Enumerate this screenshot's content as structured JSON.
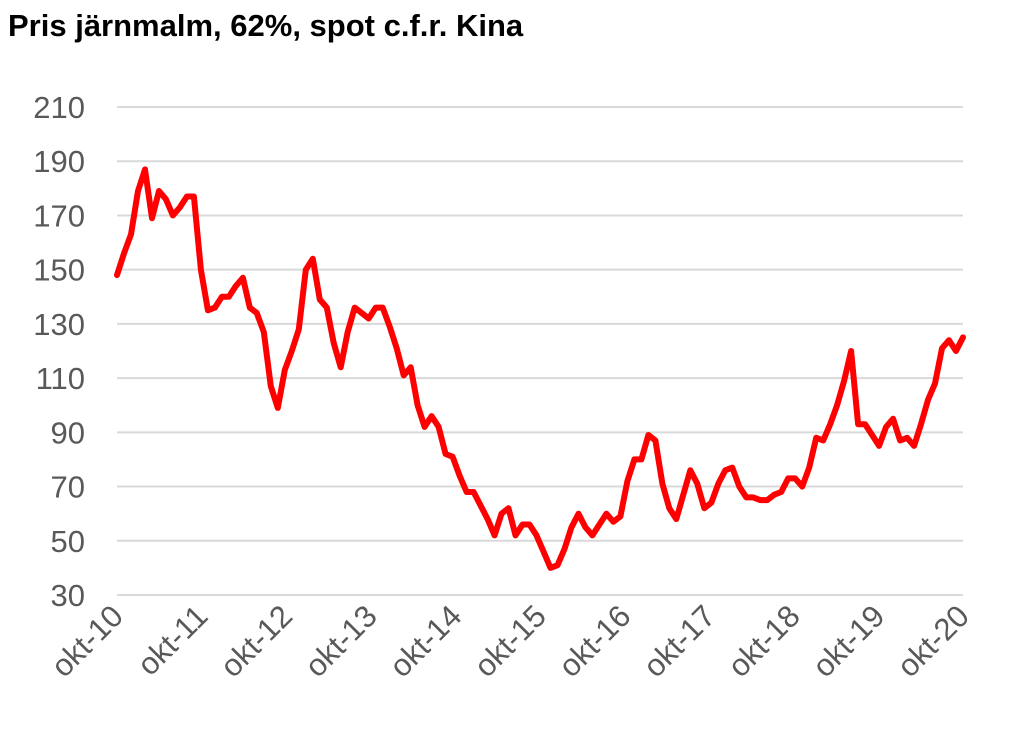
{
  "chart_data": {
    "type": "line",
    "title": "Pris järnmalm, 62%, spot c.f.r. Kina",
    "xlabel": "",
    "ylabel": "",
    "ylim": [
      30,
      210
    ],
    "yticks": [
      30,
      50,
      70,
      90,
      110,
      130,
      150,
      170,
      190,
      210
    ],
    "xtick_labels": [
      "okt-10",
      "okt-11",
      "okt-12",
      "okt-13",
      "okt-14",
      "okt-15",
      "okt-16",
      "okt-17",
      "okt-18",
      "okt-19",
      "okt-20"
    ],
    "grid": true,
    "line_color": "#ff0000",
    "grid_color": "#d9d9d9",
    "series": [
      {
        "values": [
          148,
          156,
          163,
          179,
          187,
          169,
          179,
          176,
          170,
          173,
          177,
          177,
          150,
          135,
          136,
          140,
          140,
          144,
          147,
          136,
          134,
          127,
          107,
          99,
          113,
          120,
          128,
          150,
          154,
          139,
          136,
          123,
          114,
          127,
          136,
          134,
          132,
          136,
          136,
          129,
          121,
          111,
          114,
          100,
          92,
          96,
          92,
          82,
          81,
          74,
          68,
          68,
          63,
          58,
          52,
          60,
          62,
          52,
          56,
          56,
          52,
          46,
          40,
          41,
          47,
          55,
          60,
          55,
          52,
          56,
          60,
          57,
          59,
          72,
          80,
          80,
          89,
          87,
          71,
          62,
          58,
          67,
          76,
          71,
          62,
          64,
          71,
          76,
          77,
          70,
          66,
          66,
          65,
          65,
          67,
          68,
          73,
          73,
          70,
          77,
          88,
          87,
          93,
          100,
          109,
          120,
          93,
          93,
          89,
          85,
          92,
          95,
          87,
          88,
          85,
          93,
          102,
          108,
          121,
          124,
          120,
          125
        ]
      }
    ]
  }
}
